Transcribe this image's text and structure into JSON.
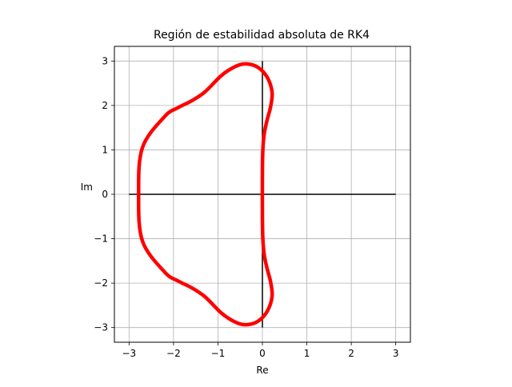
{
  "chart_data": {
    "type": "line",
    "title": "Región de estabilidad absoluta de RK4",
    "xlabel": "Re",
    "ylabel": "Im",
    "xlim": [
      -3.33,
      3.33
    ],
    "ylim": [
      -3.33,
      3.33
    ],
    "xticks": [
      -3,
      -2,
      -1,
      0,
      1,
      2,
      3
    ],
    "yticks": [
      -3,
      -2,
      -1,
      0,
      1,
      2,
      3
    ],
    "xtick_labels": [
      "−3",
      "−2",
      "−1",
      "0",
      "1",
      "2",
      "3"
    ],
    "ytick_labels": [
      "−3",
      "−2",
      "−1",
      "0",
      "1",
      "2",
      "3"
    ],
    "grid": true,
    "reference_lines": [
      {
        "name": "real-axis-line",
        "x": [
          -3,
          3
        ],
        "y": [
          0,
          0
        ],
        "color": "#000000"
      },
      {
        "name": "imag-axis-line",
        "x": [
          0,
          0
        ],
        "y": [
          -3,
          3
        ],
        "color": "#000000"
      }
    ],
    "series": [
      {
        "color": "#ff0000",
        "x": [
          -2.785,
          -2.7,
          -2.2,
          -1.9,
          -1.6,
          -1.3,
          -0.95,
          -0.75,
          -0.5,
          -0.3,
          -0.12,
          0.05,
          0.17,
          0.22,
          0.18,
          0.1,
          0.04,
          0.01,
          0.0,
          0.0,
          0.01,
          0.04,
          0.1,
          0.18,
          0.22,
          0.17,
          0.05,
          -0.12,
          -0.3,
          -0.5,
          -0.75,
          -0.95,
          -1.3,
          -1.6,
          -1.9,
          -2.2,
          -2.7,
          -2.785
        ],
        "y": [
          0.0,
          1.05,
          1.75,
          1.95,
          2.1,
          2.3,
          2.65,
          2.8,
          2.92,
          2.93,
          2.87,
          2.72,
          2.5,
          2.25,
          1.95,
          1.65,
          1.35,
          1.0,
          0.5,
          -0.5,
          -1.0,
          -1.35,
          -1.65,
          -1.95,
          -2.25,
          -2.5,
          -2.72,
          -2.87,
          -2.93,
          -2.92,
          -2.8,
          -2.65,
          -2.3,
          -2.1,
          -1.95,
          -1.75,
          -1.05,
          0.0
        ]
      }
    ]
  }
}
